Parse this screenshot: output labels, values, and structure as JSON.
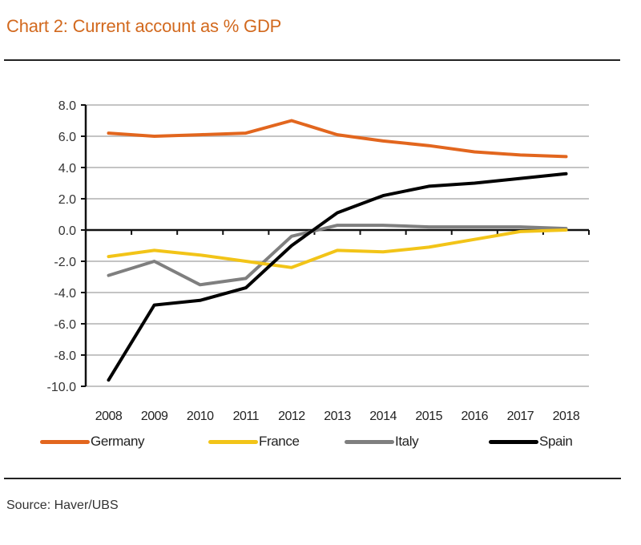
{
  "title": "Chart 2: Current account as % GDP",
  "source": "Source: Haver/UBS",
  "chart_data": {
    "type": "line",
    "title": "Chart 2: Current account as % GDP",
    "xlabel": "",
    "ylabel": "",
    "categories": [
      "2008",
      "2009",
      "2010",
      "2011",
      "2012",
      "2013",
      "2014",
      "2015",
      "2016",
      "2017",
      "2018"
    ],
    "ylim": [
      -10,
      8
    ],
    "yticks": [
      8,
      6,
      4,
      2,
      0,
      -2,
      -4,
      -6,
      -8,
      -10
    ],
    "ytick_labels": [
      "8.0",
      "6.0",
      "4.0",
      "2.0",
      "0.0",
      "-2.0",
      "-4.0",
      "-6.0",
      "-8.0",
      "-10.0"
    ],
    "grid": true,
    "legend_position": "bottom",
    "series": [
      {
        "name": "Germany",
        "color": "#e2661e",
        "values": [
          6.2,
          6.0,
          6.1,
          6.2,
          7.0,
          6.1,
          5.7,
          5.4,
          5.0,
          4.8,
          4.7
        ]
      },
      {
        "name": "France",
        "color": "#f2c418",
        "values": [
          -1.7,
          -1.3,
          -1.6,
          -2.0,
          -2.4,
          -1.3,
          -1.4,
          -1.1,
          -0.6,
          -0.1,
          0.0
        ]
      },
      {
        "name": "Italy",
        "color": "#7f7f7f",
        "values": [
          -2.9,
          -2.0,
          -3.5,
          -3.1,
          -0.4,
          0.3,
          0.3,
          0.2,
          0.2,
          0.2,
          0.1
        ]
      },
      {
        "name": "Spain",
        "color": "#000000",
        "values": [
          -9.6,
          -4.8,
          -4.5,
          -3.7,
          -1.0,
          1.1,
          2.2,
          2.8,
          3.0,
          3.3,
          3.6
        ]
      }
    ]
  }
}
